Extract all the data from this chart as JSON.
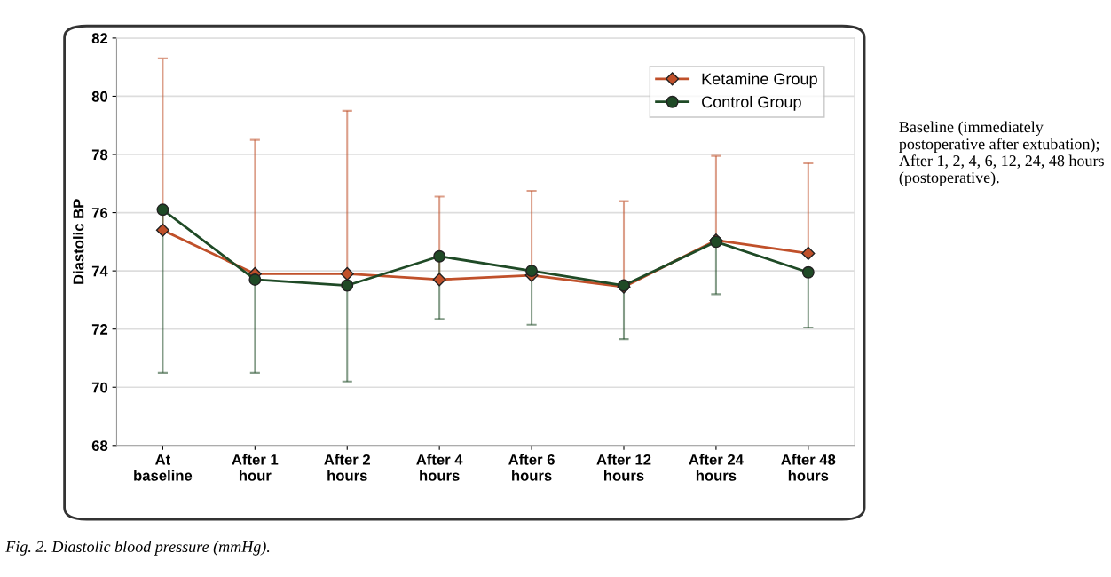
{
  "chart_data": {
    "type": "line",
    "ylabel": "Diastolic BP",
    "categories": [
      "At\nbaseline",
      "After 1\nhour",
      "After 2\nhours",
      "After 4\nhours",
      "After 6\nhours",
      "After 12\nhours",
      "After 24\nhours",
      "After 48\nhours"
    ],
    "series": [
      {
        "name": "Ketamine Group",
        "color": "#c0502a",
        "marker": "diamond",
        "values": [
          75.4,
          73.9,
          73.9,
          73.7,
          73.85,
          73.45,
          75.05,
          74.6
        ],
        "errors": [
          [
            75.4,
            81.3
          ],
          [
            73.9,
            78.5
          ],
          [
            73.9,
            79.5
          ],
          [
            73.7,
            76.55
          ],
          [
            73.85,
            76.75
          ],
          [
            73.45,
            76.4
          ],
          [
            75.05,
            77.95
          ],
          [
            74.6,
            77.7
          ]
        ]
      },
      {
        "name": "Control Group",
        "color": "#1f4a26",
        "marker": "circle",
        "values": [
          76.1,
          73.7,
          73.5,
          74.5,
          74.0,
          73.5,
          75.0,
          73.95
        ],
        "errors": [
          [
            70.5,
            76.1
          ],
          [
            70.5,
            73.7
          ],
          [
            70.2,
            73.5
          ],
          [
            72.35,
            74.5
          ],
          [
            72.15,
            74.0
          ],
          [
            71.65,
            73.5
          ],
          [
            73.2,
            75.0
          ],
          [
            72.05,
            73.95
          ]
        ]
      }
    ],
    "ylim": [
      68,
      82
    ],
    "yticks": [
      68,
      70,
      72,
      74,
      76,
      78,
      80,
      82
    ],
    "grid": "y",
    "legend": "top right",
    "annotations": [
      "Baseline (immediately postoperative after extubation); After 1, 2, 4, 6, 12, 24, 48 hours (postoperative).",
      "Fig. 2. Diastolic blood pressure (mmHg)."
    ]
  }
}
